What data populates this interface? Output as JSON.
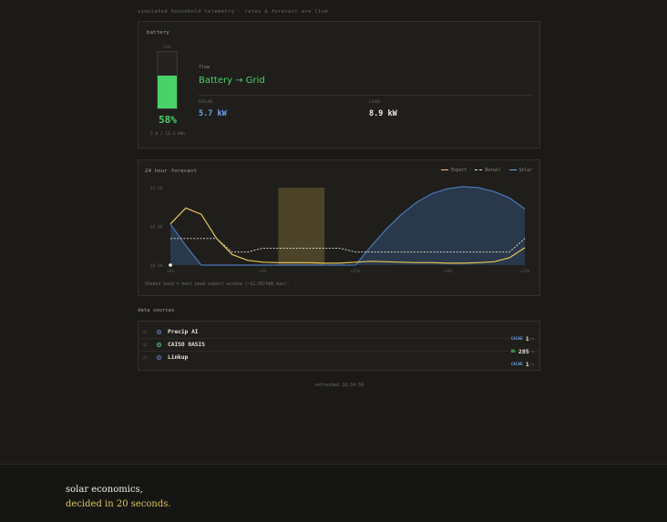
{
  "header": {
    "subtitle": "simulated household telemetry · rates & forecast are live"
  },
  "battery": {
    "title": "battery",
    "cap_label": "100%",
    "percent": 58,
    "percent_label": "58%",
    "energy": "7.0 / 12.3 kWh",
    "flow_label": "flow",
    "flow_value": "Battery → Grid",
    "solar_label": "SOLAR",
    "solar_value": "5.7 kW",
    "load_label": "LOAD",
    "load_value": "8.9 kW",
    "colors": {
      "fill": "#4bd16a",
      "solar": "#6fa3f0",
      "load": "#f2eee4"
    }
  },
  "forecast": {
    "title": "24 hour forecast",
    "legend": [
      "Export",
      "Retail",
      "Solar"
    ],
    "note": "Shaded band = next peak export window (~$1.60/kWh max).",
    "colors": {
      "export": "#e8c65a",
      "retail": "#e8e4da",
      "solar": "#4a78b8"
    },
    "chart_data": {
      "type": "line",
      "x": [
        0,
        1,
        2,
        3,
        4,
        5,
        6,
        7,
        8,
        9,
        10,
        11,
        12,
        13,
        14,
        15,
        16,
        17,
        18,
        19,
        20,
        21,
        22,
        23
      ],
      "x_ticks": [
        "+0h",
        "+6h",
        "+12h",
        "+18h",
        "+23h"
      ],
      "y_ticks": [
        "$1.60",
        "$0.80",
        "$0.00"
      ],
      "ylim": [
        0,
        1.6
      ],
      "series": [
        {
          "name": "Export",
          "values": [
            0.85,
            1.18,
            1.05,
            0.55,
            0.22,
            0.1,
            0.06,
            0.05,
            0.05,
            0.05,
            0.04,
            0.04,
            0.06,
            0.08,
            0.07,
            0.06,
            0.05,
            0.05,
            0.04,
            0.04,
            0.05,
            0.07,
            0.15,
            0.36
          ]
        },
        {
          "name": "Retail",
          "values": [
            0.55,
            0.55,
            0.55,
            0.55,
            0.27,
            0.27,
            0.35,
            0.35,
            0.35,
            0.35,
            0.35,
            0.35,
            0.27,
            0.27,
            0.27,
            0.27,
            0.27,
            0.27,
            0.27,
            0.27,
            0.27,
            0.27,
            0.27,
            0.55
          ]
        },
        {
          "name": "Solar",
          "values": [
            0.85,
            0.4,
            0,
            0,
            0,
            0,
            0,
            0,
            0,
            0,
            0,
            0,
            0,
            0.38,
            0.74,
            1.05,
            1.3,
            1.48,
            1.58,
            1.62,
            1.6,
            1.52,
            1.39,
            1.16
          ]
        }
      ],
      "highlight_band": {
        "x_start": 7,
        "x_end": 10
      }
    }
  },
  "sources": {
    "title": "data sources",
    "items": [
      {
        "index": "01",
        "name": "Precip AI",
        "badge": "CACHE",
        "badge_color": "#6fa3f0",
        "count": "1",
        "unit": "rq",
        "dot_color": "#5a7fc0"
      },
      {
        "index": "02",
        "name": "CAISO OASIS",
        "badge": "OK",
        "badge_color": "#4bd16a",
        "count": "285",
        "unit": "rq",
        "dot_color": "#4bd16a"
      },
      {
        "index": "03",
        "name": "Linkup",
        "badge": "CACHE",
        "badge_color": "#6fa3f0",
        "count": "1",
        "unit": "rq",
        "dot_color": "#5a7fc0"
      }
    ]
  },
  "refreshed": "refreshed 18:24:59",
  "footer": {
    "line1": "solar economics,",
    "line2": "decided in 20 seconds."
  }
}
